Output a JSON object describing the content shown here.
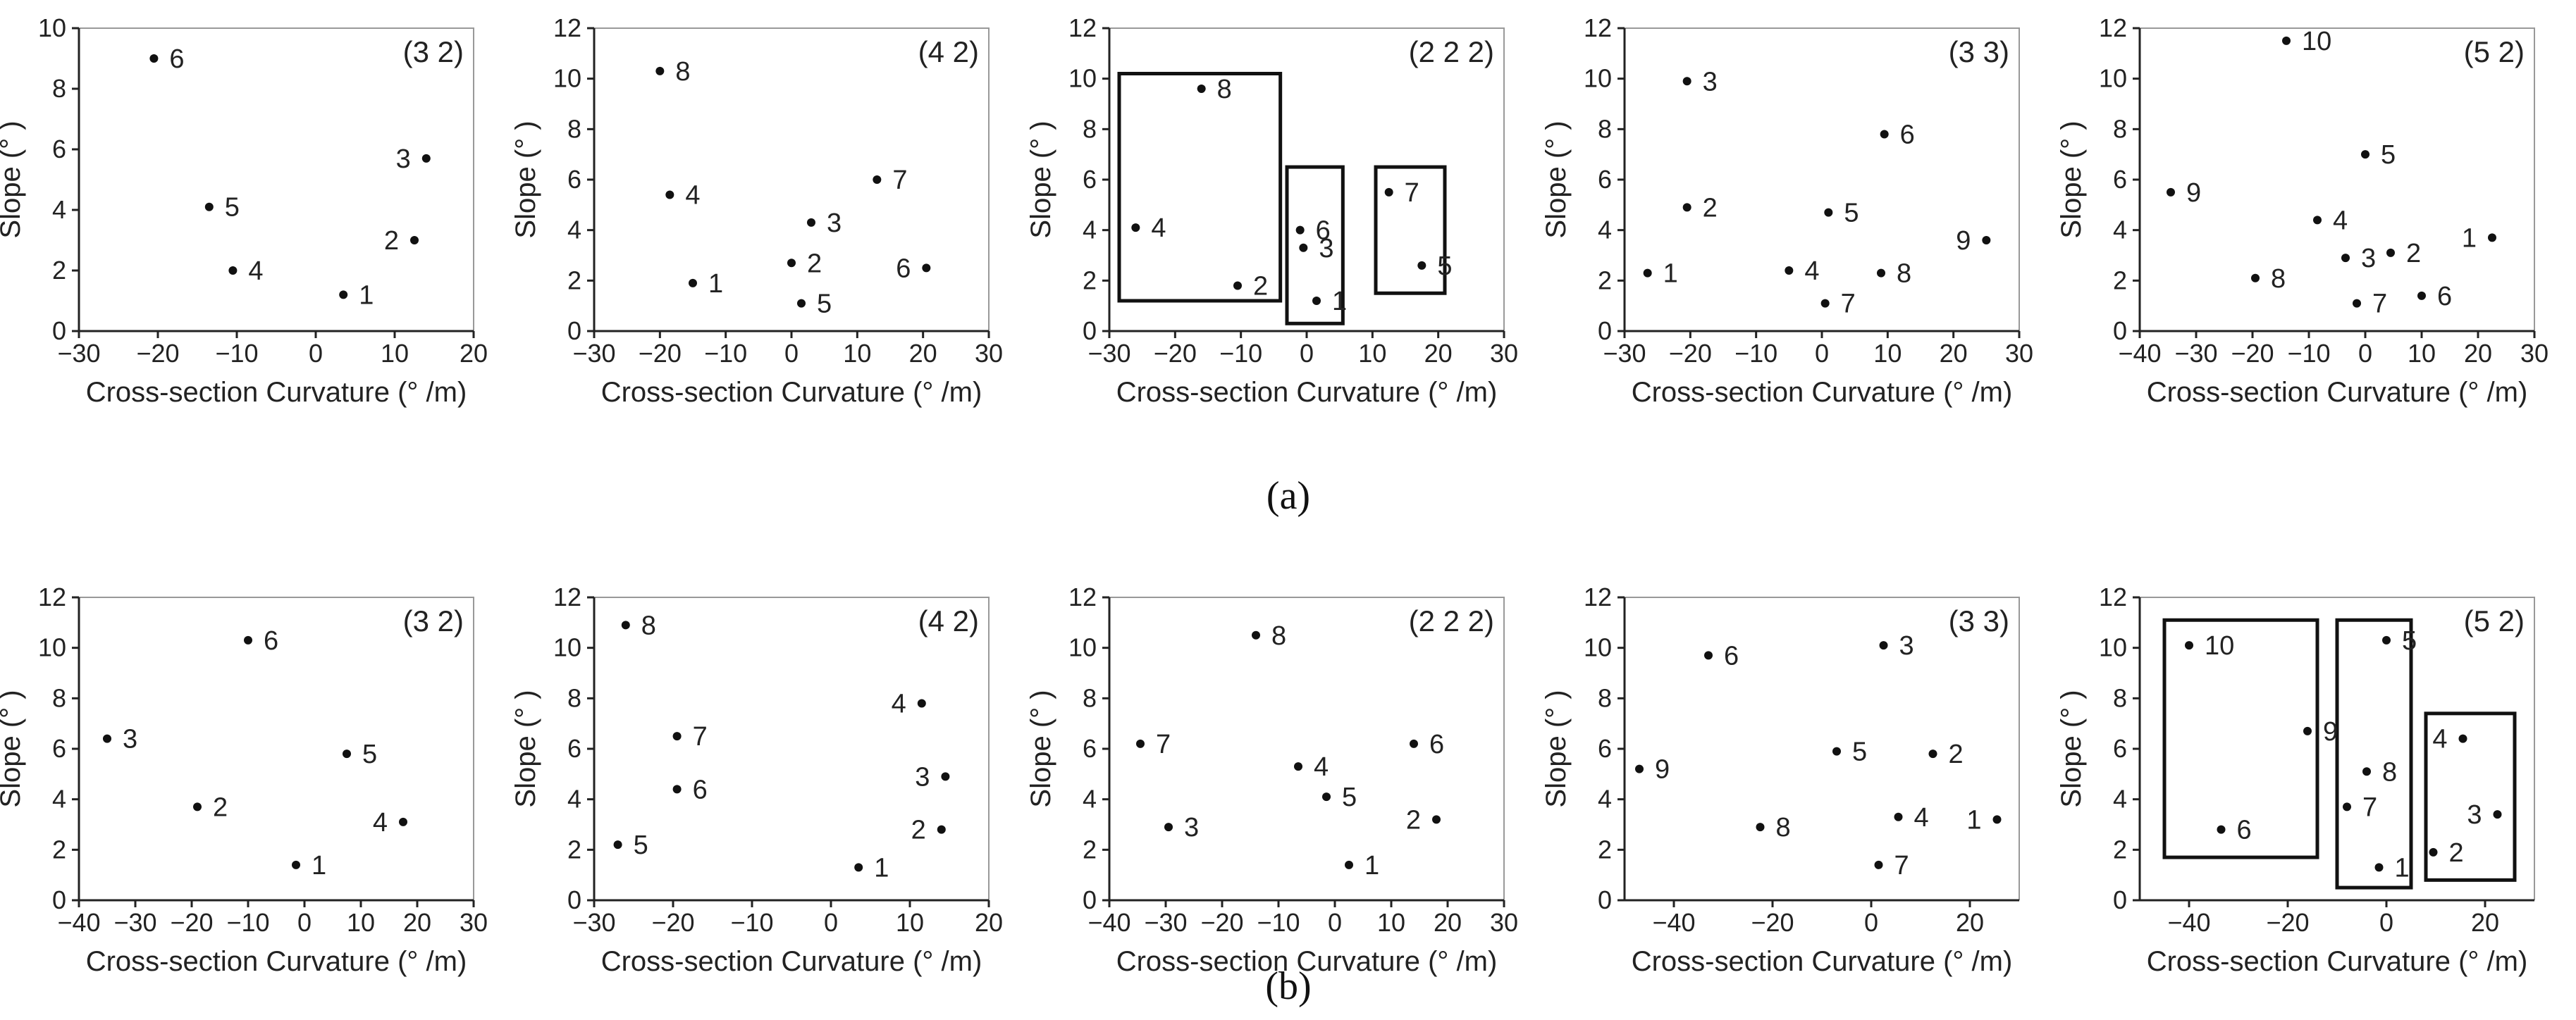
{
  "figure": {
    "row_captions": [
      "(a)",
      "(b)"
    ]
  },
  "chart_data": [
    {
      "type": "scatter",
      "row": "a",
      "title": "(3 2)",
      "xlabel": "Cross-section Curvature (° /m)",
      "ylabel": "Slope (° )",
      "xlim": [
        -30,
        20
      ],
      "ylim": [
        0,
        10
      ],
      "xticks": [
        -30,
        -20,
        -10,
        0,
        10,
        20
      ],
      "yticks": [
        0,
        2,
        4,
        6,
        8,
        10
      ],
      "points": [
        {
          "label": "1",
          "x": 3.5,
          "y": 1.2
        },
        {
          "label": "2",
          "x": 12.5,
          "y": 3.0
        },
        {
          "label": "3",
          "x": 14.0,
          "y": 5.7
        },
        {
          "label": "4",
          "x": -10.5,
          "y": 2.0
        },
        {
          "label": "5",
          "x": -13.5,
          "y": 4.1
        },
        {
          "label": "6",
          "x": -20.5,
          "y": 9.0
        }
      ],
      "groups": []
    },
    {
      "type": "scatter",
      "row": "a",
      "title": "(4 2)",
      "xlabel": "Cross-section Curvature (° /m)",
      "ylabel": "Slope (° )",
      "xlim": [
        -30,
        30
      ],
      "ylim": [
        0,
        12
      ],
      "xticks": [
        -30,
        -20,
        -10,
        0,
        10,
        20,
        30
      ],
      "yticks": [
        0,
        2,
        4,
        6,
        8,
        10,
        12
      ],
      "points": [
        {
          "label": "1",
          "x": -15.0,
          "y": 1.9
        },
        {
          "label": "2",
          "x": 0.0,
          "y": 2.7
        },
        {
          "label": "3",
          "x": 3.0,
          "y": 4.3
        },
        {
          "label": "4",
          "x": -18.5,
          "y": 5.4
        },
        {
          "label": "5",
          "x": 1.5,
          "y": 1.1
        },
        {
          "label": "6",
          "x": 20.5,
          "y": 2.5
        },
        {
          "label": "7",
          "x": 13.0,
          "y": 6.0
        },
        {
          "label": "8",
          "x": -20.0,
          "y": 10.3
        }
      ],
      "groups": []
    },
    {
      "type": "scatter",
      "row": "a",
      "title": "(2 2 2)",
      "xlabel": "Cross-section Curvature (° /m)",
      "ylabel": "Slope (° )",
      "xlim": [
        -30,
        30
      ],
      "ylim": [
        0,
        12
      ],
      "xticks": [
        -30,
        -20,
        -10,
        0,
        10,
        20,
        30
      ],
      "yticks": [
        0,
        2,
        4,
        6,
        8,
        10,
        12
      ],
      "points": [
        {
          "label": "1",
          "x": 1.5,
          "y": 1.2
        },
        {
          "label": "2",
          "x": -10.5,
          "y": 1.8
        },
        {
          "label": "3",
          "x": -0.5,
          "y": 3.3
        },
        {
          "label": "4",
          "x": -26.0,
          "y": 4.1
        },
        {
          "label": "5",
          "x": 17.5,
          "y": 2.6
        },
        {
          "label": "6",
          "x": -1.0,
          "y": 4.0
        },
        {
          "label": "7",
          "x": 12.5,
          "y": 5.5
        },
        {
          "label": "8",
          "x": -16.0,
          "y": 9.6
        }
      ],
      "groups": [
        {
          "x0": -28.5,
          "x1": -4.0,
          "y0": 1.2,
          "y1": 10.2
        },
        {
          "x0": -3.0,
          "x1": 5.5,
          "y0": 0.3,
          "y1": 6.5
        },
        {
          "x0": 10.5,
          "x1": 21.0,
          "y0": 1.5,
          "y1": 6.5
        }
      ]
    },
    {
      "type": "scatter",
      "row": "a",
      "title": "(3 3)",
      "xlabel": "Cross-section Curvature (° /m)",
      "ylabel": "Slope (° )",
      "xlim": [
        -30,
        30
      ],
      "ylim": [
        0,
        12
      ],
      "xticks": [
        -30,
        -20,
        -10,
        0,
        10,
        20,
        30
      ],
      "yticks": [
        0,
        2,
        4,
        6,
        8,
        10,
        12
      ],
      "points": [
        {
          "label": "1",
          "x": -26.5,
          "y": 2.3
        },
        {
          "label": "2",
          "x": -20.5,
          "y": 4.9
        },
        {
          "label": "3",
          "x": -20.5,
          "y": 9.9
        },
        {
          "label": "4",
          "x": -5.0,
          "y": 2.4
        },
        {
          "label": "5",
          "x": 1.0,
          "y": 4.7
        },
        {
          "label": "6",
          "x": 9.5,
          "y": 7.8
        },
        {
          "label": "7",
          "x": 0.5,
          "y": 1.1
        },
        {
          "label": "8",
          "x": 9.0,
          "y": 2.3
        },
        {
          "label": "9",
          "x": 25.0,
          "y": 3.6
        }
      ],
      "groups": []
    },
    {
      "type": "scatter",
      "row": "a",
      "title": "(5 2)",
      "xlabel": "Cross-section Curvature (° /m)",
      "ylabel": "Slope (° )",
      "xlim": [
        -40,
        30
      ],
      "ylim": [
        0,
        12
      ],
      "xticks": [
        -40,
        -30,
        -20,
        -10,
        0,
        10,
        20,
        30
      ],
      "yticks": [
        0,
        2,
        4,
        6,
        8,
        10,
        12
      ],
      "points": [
        {
          "label": "1",
          "x": 22.5,
          "y": 3.7
        },
        {
          "label": "2",
          "x": 4.5,
          "y": 3.1
        },
        {
          "label": "3",
          "x": -3.5,
          "y": 2.9
        },
        {
          "label": "4",
          "x": -8.5,
          "y": 4.4
        },
        {
          "label": "5",
          "x": 0.0,
          "y": 7.0
        },
        {
          "label": "6",
          "x": 10.0,
          "y": 1.4
        },
        {
          "label": "7",
          "x": -1.5,
          "y": 1.1
        },
        {
          "label": "8",
          "x": -19.5,
          "y": 2.1
        },
        {
          "label": "9",
          "x": -34.5,
          "y": 5.5
        },
        {
          "label": "10",
          "x": -14.0,
          "y": 11.5
        }
      ],
      "groups": []
    },
    {
      "type": "scatter",
      "row": "b",
      "title": "(3 2)",
      "xlabel": "Cross-section Curvature (° /m)",
      "ylabel": "Slope (° )",
      "xlim": [
        -40,
        30
      ],
      "ylim": [
        0,
        12
      ],
      "xticks": [
        -40,
        -30,
        -20,
        -10,
        0,
        10,
        20,
        30
      ],
      "yticks": [
        0,
        2,
        4,
        6,
        8,
        10,
        12
      ],
      "points": [
        {
          "label": "1",
          "x": -1.5,
          "y": 1.4
        },
        {
          "label": "2",
          "x": -19.0,
          "y": 3.7
        },
        {
          "label": "3",
          "x": -35.0,
          "y": 6.4
        },
        {
          "label": "4",
          "x": 17.5,
          "y": 3.1
        },
        {
          "label": "5",
          "x": 7.5,
          "y": 5.8
        },
        {
          "label": "6",
          "x": -10.0,
          "y": 10.3
        }
      ],
      "groups": []
    },
    {
      "type": "scatter",
      "row": "b",
      "title": "(4 2)",
      "xlabel": "Cross-section Curvature (° /m)",
      "ylabel": "Slope (° )",
      "xlim": [
        -30,
        20
      ],
      "ylim": [
        0,
        12
      ],
      "xticks": [
        -30,
        -20,
        -10,
        0,
        10,
        20
      ],
      "yticks": [
        0,
        2,
        4,
        6,
        8,
        10,
        12
      ],
      "points": [
        {
          "label": "1",
          "x": 3.5,
          "y": 1.3
        },
        {
          "label": "2",
          "x": 14.0,
          "y": 2.8
        },
        {
          "label": "3",
          "x": 14.5,
          "y": 4.9
        },
        {
          "label": "4",
          "x": 11.5,
          "y": 7.8
        },
        {
          "label": "5",
          "x": -27.0,
          "y": 2.2
        },
        {
          "label": "6",
          "x": -19.5,
          "y": 4.4
        },
        {
          "label": "7",
          "x": -19.5,
          "y": 6.5
        },
        {
          "label": "8",
          "x": -26.0,
          "y": 10.9
        }
      ],
      "groups": []
    },
    {
      "type": "scatter",
      "row": "b",
      "title": "(2 2 2)",
      "xlabel": "Cross-section Curvature (° /m)",
      "ylabel": "Slope (° )",
      "xlim": [
        -40,
        30
      ],
      "ylim": [
        0,
        12
      ],
      "xticks": [
        -40,
        -30,
        -20,
        -10,
        0,
        10,
        20,
        30
      ],
      "yticks": [
        0,
        2,
        4,
        6,
        8,
        10,
        12
      ],
      "points": [
        {
          "label": "1",
          "x": 2.5,
          "y": 1.4
        },
        {
          "label": "2",
          "x": 18.0,
          "y": 3.2
        },
        {
          "label": "3",
          "x": -29.5,
          "y": 2.9
        },
        {
          "label": "4",
          "x": -6.5,
          "y": 5.3
        },
        {
          "label": "5",
          "x": -1.5,
          "y": 4.1
        },
        {
          "label": "6",
          "x": 14.0,
          "y": 6.2
        },
        {
          "label": "7",
          "x": -34.5,
          "y": 6.2
        },
        {
          "label": "8",
          "x": -14.0,
          "y": 10.5
        }
      ],
      "groups": []
    },
    {
      "type": "scatter",
      "row": "b",
      "title": "(3 3)",
      "xlabel": "Cross-section Curvature (° /m)",
      "ylabel": "Slope (° )",
      "xlim": [
        -50,
        30
      ],
      "ylim": [
        0,
        12
      ],
      "xticks": [
        -40,
        -20,
        0,
        20
      ],
      "yticks": [
        0,
        2,
        4,
        6,
        8,
        10,
        12
      ],
      "points": [
        {
          "label": "1",
          "x": 25.5,
          "y": 3.2
        },
        {
          "label": "2",
          "x": 12.5,
          "y": 5.8
        },
        {
          "label": "3",
          "x": 2.5,
          "y": 10.1
        },
        {
          "label": "4",
          "x": 5.5,
          "y": 3.3
        },
        {
          "label": "5",
          "x": -7.0,
          "y": 5.9
        },
        {
          "label": "6",
          "x": -33.0,
          "y": 9.7
        },
        {
          "label": "7",
          "x": 1.5,
          "y": 1.4
        },
        {
          "label": "8",
          "x": -22.5,
          "y": 2.9
        },
        {
          "label": "9",
          "x": -47.0,
          "y": 5.2
        }
      ],
      "groups": []
    },
    {
      "type": "scatter",
      "row": "b",
      "title": "(5 2)",
      "xlabel": "Cross-section Curvature (° /m)",
      "ylabel": "Slope (° )",
      "xlim": [
        -50,
        30
      ],
      "ylim": [
        0,
        12
      ],
      "xticks": [
        -40,
        -20,
        0,
        20
      ],
      "yticks": [
        0,
        2,
        4,
        6,
        8,
        10,
        12
      ],
      "points": [
        {
          "label": "1",
          "x": -1.5,
          "y": 1.3
        },
        {
          "label": "2",
          "x": 9.5,
          "y": 1.9
        },
        {
          "label": "3",
          "x": 22.5,
          "y": 3.4
        },
        {
          "label": "4",
          "x": 15.5,
          "y": 6.4
        },
        {
          "label": "5",
          "x": 0.0,
          "y": 10.3
        },
        {
          "label": "6",
          "x": -33.5,
          "y": 2.8
        },
        {
          "label": "7",
          "x": -8.0,
          "y": 3.7
        },
        {
          "label": "8",
          "x": -4.0,
          "y": 5.1
        },
        {
          "label": "9",
          "x": -16.0,
          "y": 6.7
        },
        {
          "label": "10",
          "x": -40.0,
          "y": 10.1
        }
      ],
      "groups": [
        {
          "x0": -45.0,
          "x1": -14.0,
          "y0": 1.7,
          "y1": 11.1
        },
        {
          "x0": -10.0,
          "x1": 5.0,
          "y0": 0.5,
          "y1": 11.1
        },
        {
          "x0": 8.0,
          "x1": 26.0,
          "y0": 0.8,
          "y1": 7.4
        }
      ]
    }
  ]
}
